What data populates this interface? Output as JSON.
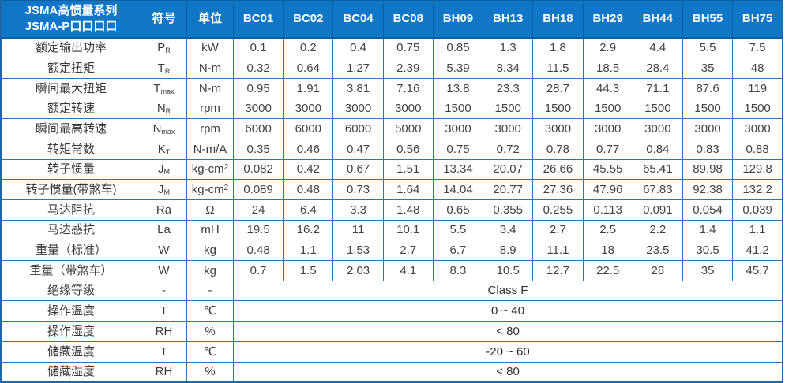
{
  "table": {
    "title_line1": "JSMA高惯量系列",
    "title_line2": "JSMA-P口口口口",
    "col_symbol": "符号",
    "col_unit": "单位",
    "models": [
      "BC01",
      "BC02",
      "BC04",
      "BC08",
      "BH09",
      "BH13",
      "BH18",
      "BH29",
      "BH44",
      "BH55",
      "BH75"
    ],
    "rows": [
      {
        "label": "额定输出功率",
        "sym": "P",
        "sub": "R",
        "unit": "kW",
        "values": [
          "0.1",
          "0.2",
          "0.4",
          "0.75",
          "0.85",
          "1.3",
          "1.8",
          "2.9",
          "4.4",
          "5.5",
          "7.5"
        ]
      },
      {
        "label": "额定扭矩",
        "sym": "T",
        "sub": "R",
        "unit": "N-m",
        "values": [
          "0.32",
          "0.64",
          "1.27",
          "2.39",
          "5.39",
          "8.34",
          "11.5",
          "18.5",
          "28.4",
          "35",
          "48"
        ]
      },
      {
        "label": "瞬间最大扭矩",
        "sym": "T",
        "sub": "max",
        "unit": "N-m",
        "values": [
          "0.95",
          "1.91",
          "3.81",
          "7.16",
          "13.8",
          "23.3",
          "28.7",
          "44.3",
          "71.1",
          "87.6",
          "119"
        ]
      },
      {
        "label": "额定转速",
        "sym": "N",
        "sub": "R",
        "unit": "rpm",
        "values": [
          "3000",
          "3000",
          "3000",
          "3000",
          "1500",
          "1500",
          "1500",
          "1500",
          "1500",
          "1500",
          "1500"
        ]
      },
      {
        "label": "瞬间最高转速",
        "sym": "N",
        "sub": "max",
        "unit": "rpm",
        "values": [
          "6000",
          "6000",
          "6000",
          "5000",
          "3000",
          "3000",
          "3000",
          "3000",
          "3000",
          "3000",
          "3000"
        ]
      },
      {
        "label": "转矩常数",
        "sym": "K",
        "sub": "T",
        "unit": "N-m/A",
        "values": [
          "0.35",
          "0.46",
          "0.47",
          "0.56",
          "0.75",
          "0.72",
          "0.78",
          "0.77",
          "0.84",
          "0.83",
          "0.88"
        ]
      },
      {
        "label": "转子惯量",
        "sym": "J",
        "sub": "M",
        "unit": "kg-cm2",
        "values": [
          "0.082",
          "0.42",
          "0.67",
          "1.51",
          "13.34",
          "20.07",
          "26.66",
          "45.55",
          "65.41",
          "89.98",
          "129.8"
        ]
      },
      {
        "label": "转子惯量(带煞车)",
        "sym": "J",
        "sub": "M",
        "unit": "kg-cm2",
        "values": [
          "0.089",
          "0.48",
          "0.73",
          "1.64",
          "14.04",
          "20.77",
          "27.36",
          "47.96",
          "67.83",
          "92.38",
          "132.2"
        ]
      },
      {
        "label": "马达阻抗",
        "sym": "Ra",
        "sub": "",
        "unit": "Ω",
        "values": [
          "24",
          "6.4",
          "3.3",
          "1.48",
          "0.65",
          "0.355",
          "0.255",
          "0.113",
          "0.091",
          "0.054",
          "0.039"
        ]
      },
      {
        "label": "马达感抗",
        "sym": "La",
        "sub": "",
        "unit": "mH",
        "values": [
          "19.5",
          "16.2",
          "11",
          "10.1",
          "5.5",
          "3.4",
          "2.7",
          "2.5",
          "2.2",
          "1.4",
          "1.1"
        ]
      },
      {
        "label": "重量（标准）",
        "sym": "W",
        "sub": "",
        "unit": "kg",
        "values": [
          "0.48",
          "1.1",
          "1.53",
          "2.7",
          "6.7",
          "8.9",
          "11.1",
          "18",
          "23.5",
          "30.5",
          "41.2"
        ]
      },
      {
        "label": "重量（带煞车）",
        "sym": "W",
        "sub": "",
        "unit": "kg",
        "values": [
          "0.7",
          "1.5",
          "2.03",
          "4.1",
          "8.3",
          "10.5",
          "12.7",
          "22.5",
          "28",
          "35",
          "45.7"
        ]
      },
      {
        "label": "绝缘等级",
        "sym": "-",
        "sub": "",
        "unit": "-",
        "merged": "Class F"
      },
      {
        "label": "操作温度",
        "sym": "T",
        "sub": "",
        "unit": "℃",
        "merged": "0 ~ 40"
      },
      {
        "label": "操作湿度",
        "sym": "RH",
        "sub": "",
        "unit": "%",
        "merged": "< 80"
      },
      {
        "label": "储藏温度",
        "sym": "T",
        "sub": "",
        "unit": "℃",
        "merged": "-20 ~ 60"
      },
      {
        "label": "储藏湿度",
        "sym": "RH",
        "sub": "",
        "unit": "%",
        "merged": "< 80"
      }
    ]
  },
  "colors": {
    "header_bg": "#1076c6",
    "header_divider": "#0a5ea4",
    "grid": "#2e74b5",
    "header_text": "#ffffff",
    "body_text": "#3c3c3c"
  }
}
